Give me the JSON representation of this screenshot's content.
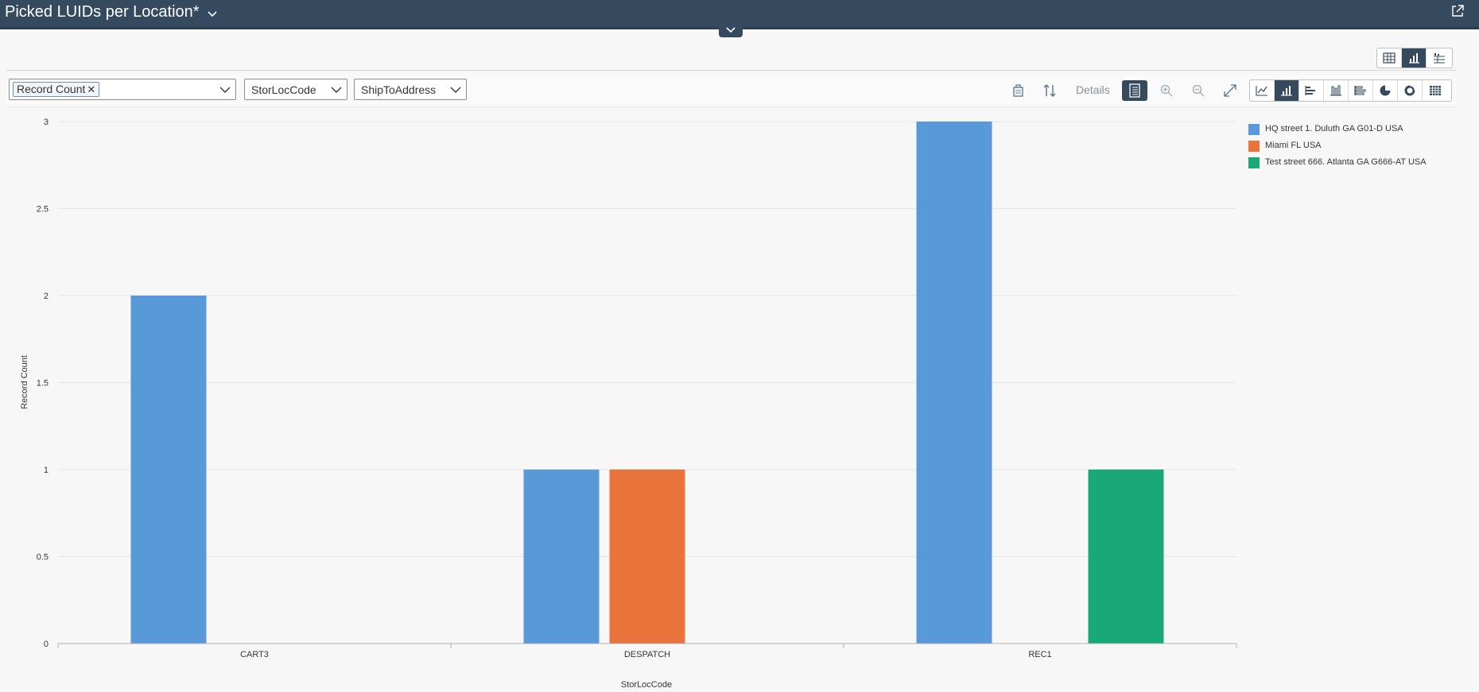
{
  "header": {
    "title": "Picked LUIDs per Location*"
  },
  "filters": {
    "measure_token": "Record Count",
    "dimension1": "StorLocCode",
    "dimension2": "ShipToAddress"
  },
  "toolbar": {
    "details_label": "Details"
  },
  "colors": {
    "header_bg": "#354a5f",
    "series1": "#5899da",
    "series2": "#e8743b",
    "series3": "#19a979"
  },
  "icons": {
    "title_caret": "chevron-down-icon",
    "share": "share-icon",
    "collapse": "chevron-down-icon",
    "view_table": "table-icon",
    "view_chart": "bar-chart-icon",
    "view_both": "chart-table-icon",
    "copy": "copy-icon",
    "swap": "swap-axes-icon",
    "legend_toggle": "legend-icon",
    "zoom_in": "zoom-in-icon",
    "zoom_out": "zoom-out-icon",
    "fullscreen": "fullscreen-icon",
    "chart_types": [
      "line-chart-icon",
      "column-chart-icon",
      "bar-chart-icon",
      "stacked-column-icon",
      "stacked-bar-icon",
      "pie-chart-icon",
      "donut-chart-icon",
      "heatmap-icon"
    ]
  },
  "chart_data": {
    "type": "bar",
    "categories": [
      "CART3",
      "DESPATCH",
      "REC1"
    ],
    "series": [
      {
        "name": "HQ street 1. Duluth GA G01-D USA",
        "values": [
          2,
          1,
          3
        ]
      },
      {
        "name": "Miami FL USA",
        "values": [
          null,
          1,
          null
        ]
      },
      {
        "name": "Test street 666. Atlanta GA G666-AT USA",
        "values": [
          null,
          null,
          1
        ]
      }
    ],
    "xlabel": "StorLocCode",
    "ylabel": "Record Count",
    "ylim": [
      0,
      3
    ],
    "yticks": [
      "0",
      "0.5",
      "1",
      "1.5",
      "2",
      "2.5",
      "3"
    ],
    "grid": true,
    "legend_position": "right"
  }
}
